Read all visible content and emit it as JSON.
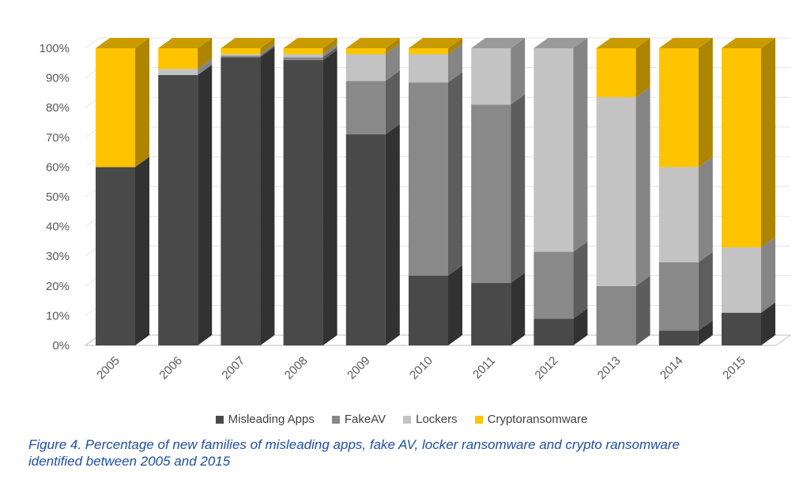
{
  "chart_data": {
    "type": "bar",
    "stacked": true,
    "three_d": true,
    "categories": [
      "2005",
      "2006",
      "2007",
      "2008",
      "2009",
      "2010",
      "2011",
      "2012",
      "2013",
      "2014",
      "2015"
    ],
    "series": [
      {
        "name": "Misleading Apps",
        "color": "#494949",
        "values": [
          60,
          91,
          97,
          96,
          71,
          23.5,
          21,
          9,
          0,
          5,
          11
        ]
      },
      {
        "name": "FakeAV",
        "color": "#898989",
        "values": [
          0,
          0,
          0.5,
          1,
          18,
          65,
          60,
          22.5,
          20,
          23,
          0
        ]
      },
      {
        "name": "Lockers",
        "color": "#c3c3c3",
        "values": [
          0,
          2,
          0.5,
          1,
          9,
          9.5,
          19,
          68.5,
          63.5,
          32,
          22
        ]
      },
      {
        "name": "Cryptoransomware",
        "color": "#ffc400",
        "values": [
          40,
          7,
          2,
          2,
          2,
          2,
          0,
          0,
          16.5,
          40,
          67
        ]
      }
    ],
    "ylim": [
      0,
      100
    ],
    "yticks": [
      "0%",
      "10%",
      "20%",
      "30%",
      "40%",
      "50%",
      "60%",
      "70%",
      "80%",
      "90%",
      "100%"
    ],
    "grid": true,
    "legend_position": "bottom",
    "xlabel": "",
    "ylabel": ""
  },
  "caption": {
    "line1": "Figure 4. Percentage of new families of misleading apps, fake AV, locker ransomware and crypto ransomware",
    "line2": "identified between 2005 and 2015"
  }
}
